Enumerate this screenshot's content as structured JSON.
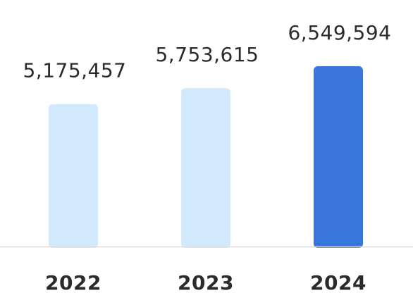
{
  "chart_data": {
    "type": "bar",
    "categories": [
      "2022",
      "2023",
      "2024"
    ],
    "values": [
      5175457,
      5753615,
      6549594
    ],
    "value_labels": [
      "5,175,457",
      "5,753,615",
      "6,549,594"
    ],
    "bar_colors": [
      "#d2e8fc",
      "#d2e8fc",
      "#3876dc"
    ],
    "baseline_color": "#dddddd",
    "title": "",
    "xlabel": "",
    "ylabel": "",
    "grid": false,
    "legend": "none"
  }
}
